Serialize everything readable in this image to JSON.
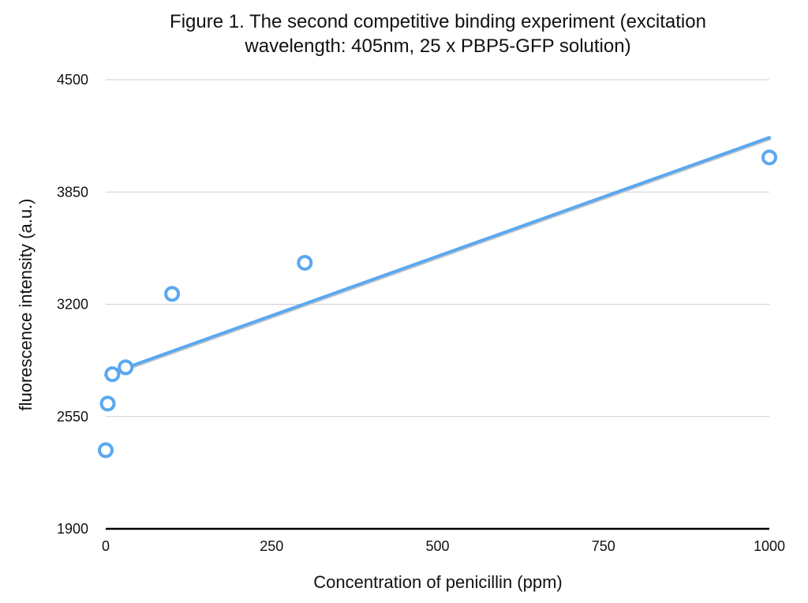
{
  "chart_data": {
    "type": "scatter",
    "title_lines": [
      "Figure 1. The second competitive binding experiment (excitation",
      "wavelength: 405nm, 25 x PBP5-GFP solution)"
    ],
    "xlabel": "Concentration of penicillin (ppm)",
    "ylabel": "fluorescence intensity (a.u.)",
    "xlim": [
      0,
      1000
    ],
    "ylim": [
      1900,
      4500
    ],
    "xticks": [
      0,
      250,
      500,
      750,
      1000
    ],
    "yticks": [
      1900,
      2550,
      3200,
      3850,
      4500
    ],
    "grid": true,
    "legend": "none",
    "series": [
      {
        "points": [
          {
            "x": 0,
            "y": 2355
          },
          {
            "x": 3,
            "y": 2625
          },
          {
            "x": 10,
            "y": 2795
          },
          {
            "x": 30,
            "y": 2835
          },
          {
            "x": 100,
            "y": 3260
          },
          {
            "x": 300,
            "y": 3440
          },
          {
            "x": 1000,
            "y": 4050
          }
        ],
        "color": "#5aa8f0"
      }
    ],
    "trendline": {
      "type": "linear",
      "color": "#5aa8f0",
      "x0": 0,
      "y0": 2790,
      "x1": 1000,
      "y1": 4165
    }
  }
}
